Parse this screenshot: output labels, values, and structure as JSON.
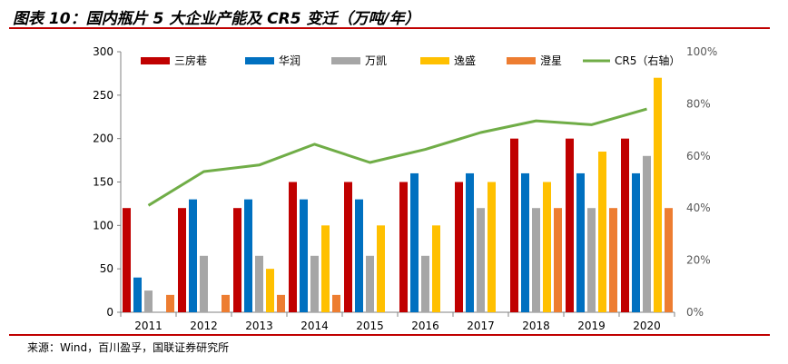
{
  "title": "图表 10：国内瓶片 5 大企业产能及 CR5 变迁（万吨/年）",
  "source": "来源：Wind，百川盈孚，国联证券研究所",
  "colors": {
    "rule": "#c00000",
    "series": [
      "#c00000",
      "#0070c0",
      "#a6a6a6",
      "#ffc000",
      "#ed7d31",
      "#70ad47"
    ]
  },
  "chart_data": {
    "type": "bar",
    "categories": [
      "2011",
      "2012",
      "2013",
      "2014",
      "2015",
      "2016",
      "2017",
      "2018",
      "2019",
      "2020"
    ],
    "series": [
      {
        "name": "三房巷",
        "type": "bar",
        "axis": "left",
        "values": [
          120,
          120,
          120,
          150,
          150,
          150,
          150,
          200,
          200,
          200
        ]
      },
      {
        "name": "华润",
        "type": "bar",
        "axis": "left",
        "values": [
          40,
          130,
          130,
          130,
          130,
          160,
          160,
          160,
          160,
          160
        ]
      },
      {
        "name": "万凯",
        "type": "bar",
        "axis": "left",
        "values": [
          25,
          65,
          65,
          65,
          65,
          65,
          120,
          120,
          120,
          180
        ]
      },
      {
        "name": "逸盛",
        "type": "bar",
        "axis": "left",
        "values": [
          null,
          null,
          50,
          100,
          100,
          100,
          150,
          150,
          185,
          270
        ]
      },
      {
        "name": "澄星",
        "type": "bar",
        "axis": "left",
        "values": [
          20,
          20,
          20,
          20,
          null,
          null,
          null,
          120,
          120,
          120
        ]
      },
      {
        "name": "CR5（右轴）",
        "type": "line",
        "axis": "right",
        "values": [
          0.41,
          0.54,
          0.565,
          0.645,
          0.575,
          0.625,
          0.69,
          0.735,
          0.72,
          0.78
        ]
      }
    ],
    "ylim": [
      0,
      300
    ],
    "yticks": [
      "0",
      "50",
      "100",
      "150",
      "200",
      "250",
      "300"
    ],
    "y2lim": [
      0,
      1
    ],
    "y2ticks": [
      "0%",
      "20%",
      "40%",
      "60%",
      "80%",
      "100%"
    ],
    "legend": "top"
  }
}
